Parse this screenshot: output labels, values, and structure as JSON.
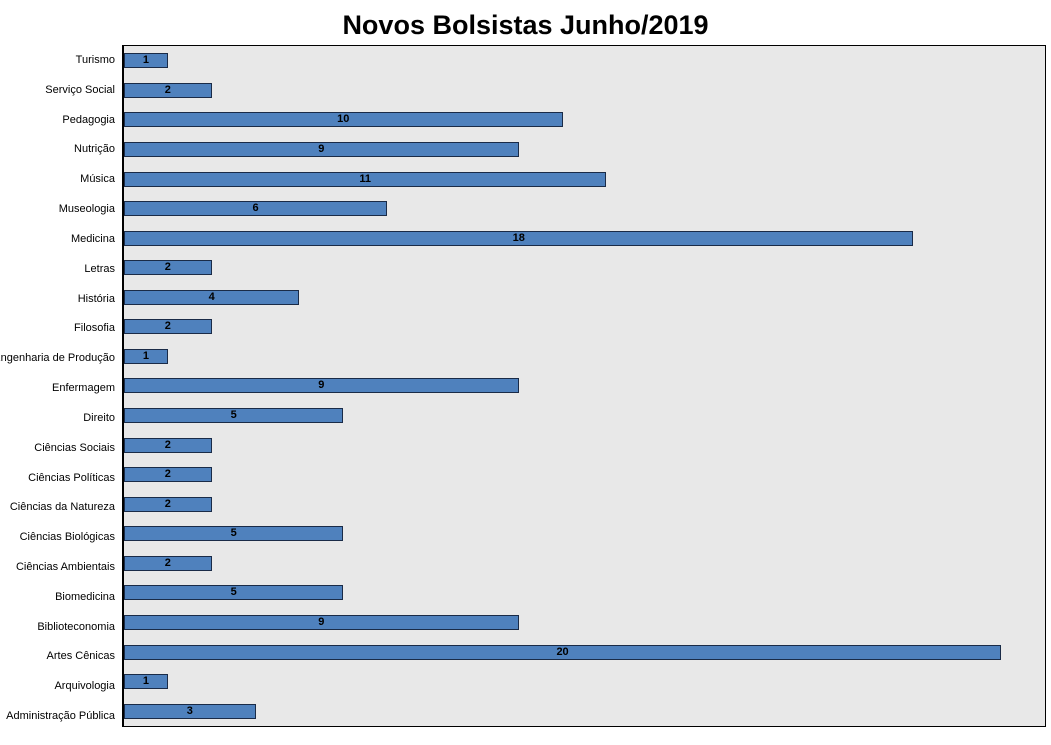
{
  "chart_data": {
    "type": "bar",
    "orientation": "horizontal",
    "title": "Novos Bolsistas Junho/2019",
    "categories": [
      "Turismo",
      "Serviço Social",
      "Pedagogia",
      "Nutrição",
      "Música",
      "Museologia",
      "Medicina",
      "Letras",
      "História",
      "Filosofia",
      "Engenharia de Produção",
      "Enfermagem",
      "Direito",
      "Ciências Sociais",
      "Ciências Políticas",
      "Ciências da Natureza",
      "Ciências Biológicas",
      "Ciências Ambientais",
      "Biomedicina",
      "Biblioteconomia",
      "Artes Cênicas",
      "Arquivologia",
      "Administração Pública"
    ],
    "values": [
      1,
      2,
      10,
      9,
      11,
      6,
      18,
      2,
      4,
      2,
      1,
      9,
      5,
      2,
      2,
      2,
      5,
      2,
      5,
      9,
      20,
      1,
      3
    ],
    "xlabel": "",
    "ylabel": "",
    "xlim": [
      0,
      21
    ],
    "grid": false,
    "legend": false,
    "data_labels": "center",
    "colors": {
      "bar_fill": "#4F81BD",
      "bar_border": "#1A2B47",
      "plot_background": "#E8E8E8",
      "plot_border": "#000000",
      "title_color": "#000000",
      "label_color": "#000000"
    }
  }
}
